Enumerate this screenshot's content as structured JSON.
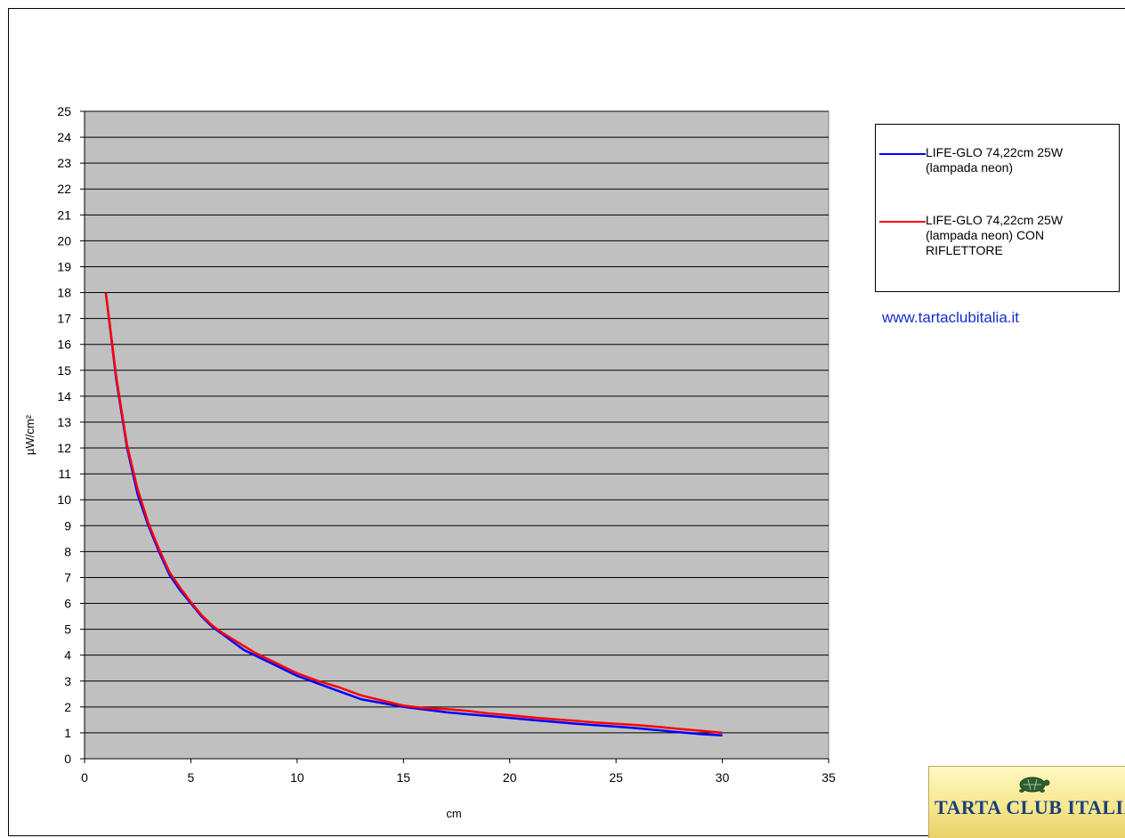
{
  "chart_data": {
    "type": "line",
    "title": "",
    "xlabel": "cm",
    "ylabel": "µW/cm²",
    "xlim": [
      0,
      35
    ],
    "ylim": [
      0,
      25
    ],
    "xticks": [
      0,
      5,
      10,
      15,
      20,
      25,
      30,
      35
    ],
    "yticks": [
      0,
      1,
      2,
      3,
      4,
      5,
      6,
      7,
      8,
      9,
      10,
      11,
      12,
      13,
      14,
      15,
      16,
      17,
      18,
      19,
      20,
      21,
      22,
      23,
      24,
      25
    ],
    "grid": "horizontal",
    "legend_position": "right",
    "plot_background": "#c0c0c0",
    "series": [
      {
        "name": "LIFE-GLO 74,22cm 25W (lampada neon)",
        "color": "#0000ff",
        "x": [
          1,
          1.5,
          2,
          2.5,
          3,
          3.5,
          4,
          4.5,
          5,
          5.5,
          6,
          6.5,
          7,
          7.5,
          8,
          8.5,
          9,
          9.5,
          10,
          11,
          12,
          13,
          14,
          15,
          16,
          17,
          18,
          19,
          20,
          21,
          22,
          23,
          24,
          25,
          26,
          27,
          28,
          29,
          30
        ],
        "y": [
          18,
          14.6,
          12,
          10.2,
          9,
          8,
          7.1,
          6.5,
          6,
          5.5,
          5.1,
          4.8,
          4.5,
          4.2,
          4.0,
          3.8,
          3.6,
          3.4,
          3.2,
          2.9,
          2.6,
          2.3,
          2.15,
          2.0,
          1.9,
          1.8,
          1.72,
          1.65,
          1.58,
          1.5,
          1.43,
          1.36,
          1.3,
          1.24,
          1.18,
          1.1,
          1.02,
          0.95,
          0.9
        ]
      },
      {
        "name": "LIFE-GLO 74,22cm 25W (lampada neon) CON RIFLETTORE",
        "color": "#ff0000",
        "x": [
          1,
          1.5,
          2,
          2.5,
          3,
          3.5,
          4,
          4.5,
          5,
          5.5,
          6,
          6.5,
          7,
          7.5,
          8,
          8.5,
          9,
          9.5,
          10,
          11,
          12,
          13,
          14,
          15,
          16,
          17,
          18,
          19,
          20,
          21,
          22,
          23,
          24,
          25,
          26,
          27,
          28,
          29,
          30
        ],
        "y": [
          18,
          14.7,
          12.1,
          10.4,
          9.1,
          8.1,
          7.2,
          6.6,
          6.05,
          5.55,
          5.15,
          4.85,
          4.6,
          4.35,
          4.1,
          3.9,
          3.7,
          3.5,
          3.3,
          3.0,
          2.75,
          2.45,
          2.25,
          2.05,
          1.95,
          1.92,
          1.85,
          1.75,
          1.68,
          1.6,
          1.53,
          1.47,
          1.4,
          1.35,
          1.3,
          1.23,
          1.15,
          1.08,
          1.0
        ]
      }
    ]
  },
  "legend": {
    "entries": [
      {
        "label_lines": [
          "LIFE-GLO 74,22cm  25W",
          "(lampada neon)"
        ],
        "color": "#0000ff"
      },
      {
        "label_lines": [
          "LIFE-GLO 74,22cm  25W",
          "(lampada neon) CON",
          "RIFLETTORE"
        ],
        "color": "#ff0000"
      }
    ]
  },
  "website": "www.tartaclubitalia.it",
  "logo": {
    "text": "TARTA CLUB ITALIA"
  }
}
